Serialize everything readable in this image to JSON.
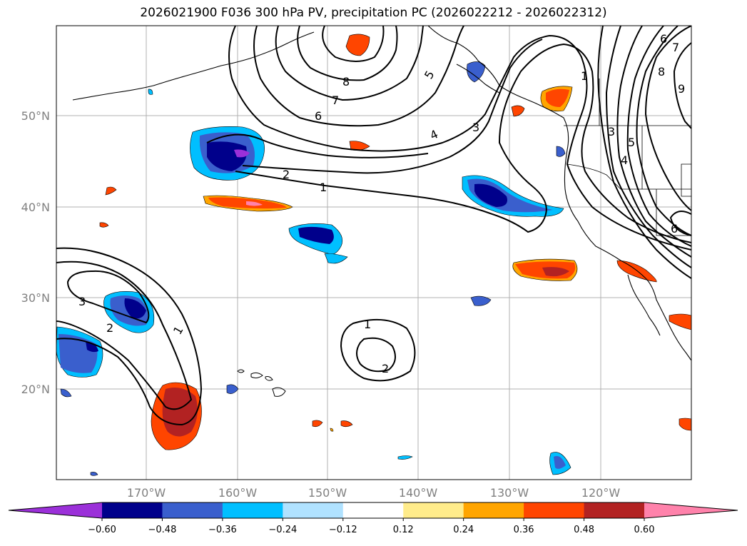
{
  "title": "2026021900 F036 300 hPa PV, precipitation PC (2026022212 - 2026022312)",
  "map": {
    "lat_labels": [
      "50°N",
      "40°N",
      "30°N",
      "20°N"
    ],
    "lon_labels": [
      "170°W",
      "160°W",
      "150°W",
      "140°W",
      "130°W",
      "120°W"
    ],
    "pv_contour_labels": [
      "1",
      "2",
      "3",
      "4",
      "5",
      "6",
      "7",
      "8",
      "1",
      "2",
      "3",
      "1",
      "2",
      "1",
      "3",
      "4",
      "5",
      "6",
      "6",
      "7",
      "8",
      "9"
    ]
  },
  "colorbar": {
    "ticks": [
      "−0.60",
      "−0.48",
      "−0.36",
      "−0.24",
      "−0.12",
      "0.12",
      "0.24",
      "0.36",
      "0.48",
      "0.60"
    ],
    "colors": [
      "#9b30d9",
      "#00008b",
      "#3a5fcd",
      "#00bfff",
      "#b0e2ff",
      "#ffffff",
      "#ffec8b",
      "#ffa500",
      "#ff4500",
      "#b22222",
      "#ff82ab"
    ]
  }
}
